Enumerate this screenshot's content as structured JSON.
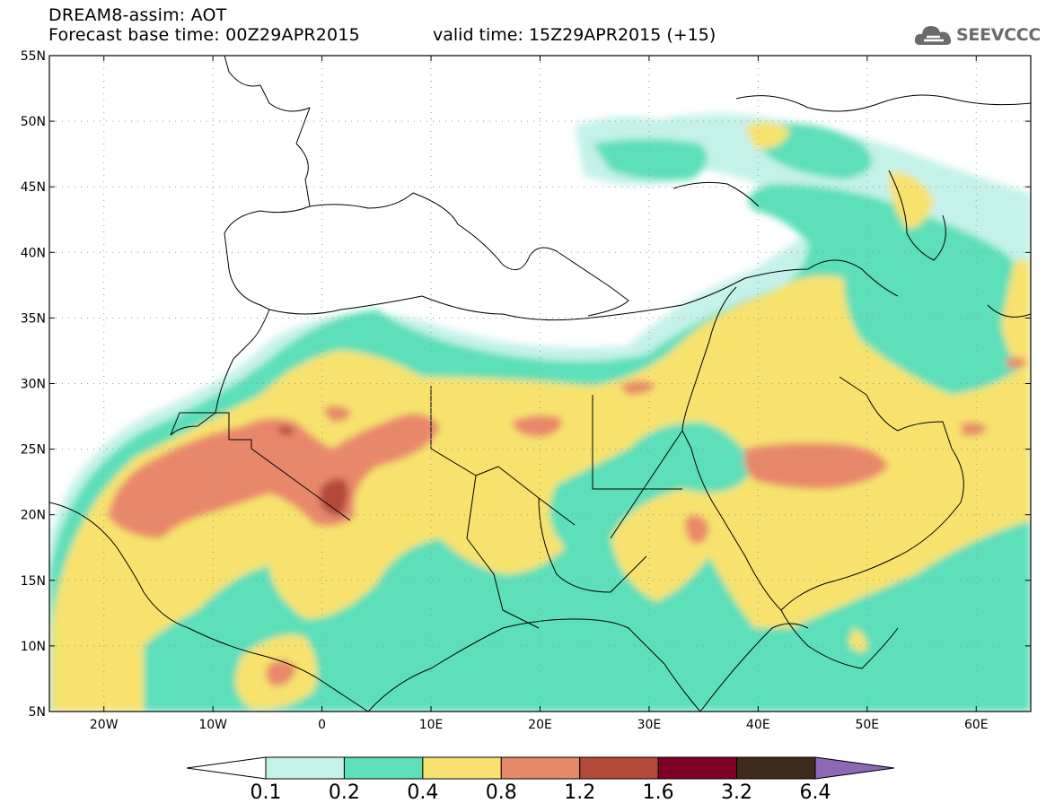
{
  "header": {
    "title": "DREAM8-assim: AOT",
    "base_time": "Forecast base time: 00Z29APR2015",
    "valid_time": "valid time: 15Z29APR2015 (+15)"
  },
  "logo": {
    "text": "SEEVCCC",
    "icon": "cloud-icon"
  },
  "axes": {
    "lat_labels": [
      "55N",
      "50N",
      "45N",
      "40N",
      "35N",
      "30N",
      "25N",
      "20N",
      "15N",
      "10N",
      "5N"
    ],
    "lon_labels": [
      "20W",
      "10W",
      "0",
      "10E",
      "20E",
      "30E",
      "40E",
      "50E",
      "60E"
    ],
    "lat_range": [
      5,
      55
    ],
    "lon_range": [
      -25,
      65
    ]
  },
  "colorbar": {
    "levels": [
      "0.1",
      "0.2",
      "0.4",
      "0.8",
      "1.2",
      "1.6",
      "3.2",
      "6.4"
    ],
    "colors": [
      "#c4f2e9",
      "#5ddfb9",
      "#f7e26e",
      "#e8886a",
      "#b4493a",
      "#800026",
      "#3e2a1a",
      "#8f68b3"
    ]
  }
}
